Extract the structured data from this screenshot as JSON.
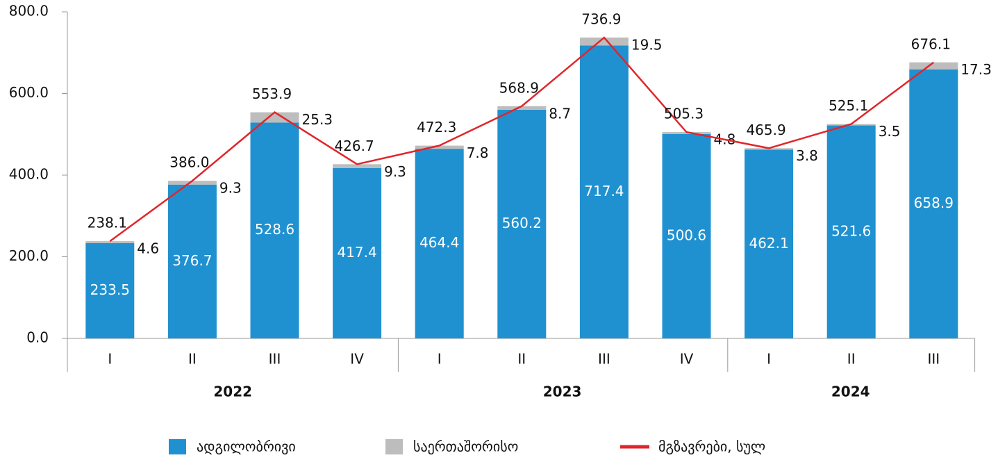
{
  "chart_data": {
    "type": "stacked-bar-line",
    "groups": [
      {
        "label": "2022",
        "categories": [
          "I",
          "II",
          "III",
          "IV"
        ]
      },
      {
        "label": "2023",
        "categories": [
          "I",
          "II",
          "III",
          "IV"
        ]
      },
      {
        "label": "2024",
        "categories": [
          "I",
          "II",
          "III"
        ]
      }
    ],
    "series": [
      {
        "name": "ადგილობრივი",
        "type": "bar",
        "color": "#1f91d0",
        "values": [
          233.5,
          376.7,
          528.6,
          417.4,
          464.4,
          560.2,
          717.4,
          500.6,
          462.1,
          521.6,
          658.9
        ]
      },
      {
        "name": "საერთაშორისო",
        "type": "bar",
        "color": "#bdbdbd",
        "values": [
          4.6,
          9.3,
          25.3,
          9.3,
          7.8,
          8.7,
          19.5,
          4.8,
          3.8,
          3.5,
          17.3
        ]
      },
      {
        "name": "მგზავრები, სულ",
        "type": "line",
        "color": "#e0262b",
        "values": [
          238.1,
          386,
          553.9,
          426.7,
          472.3,
          568.9,
          736.9,
          505.3,
          465.9,
          525.1,
          676.1
        ],
        "value_labels": [
          "238.1",
          "386.0",
          "553.9",
          "426.7",
          "472.3",
          "568.9",
          "736.9",
          "505.3",
          "465.9",
          "525.1",
          "676.1"
        ]
      }
    ],
    "ylim": [
      0,
      800
    ],
    "yticks": [
      {
        "value": 0,
        "label": "0.0"
      },
      {
        "value": 200,
        "label": "200.0"
      },
      {
        "value": 400,
        "label": "400.0"
      },
      {
        "value": 600,
        "label": "600.0"
      },
      {
        "value": 800,
        "label": "800.0"
      }
    ],
    "grid": false
  }
}
